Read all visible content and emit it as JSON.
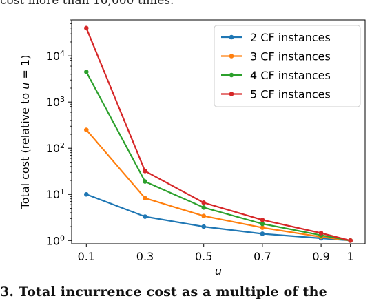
{
  "page": {
    "caption_top": "cost more than 10,000 times.",
    "caption_bottom": "3. Total incurrence cost as a multiple of the"
  },
  "chart_data": {
    "type": "line",
    "xlabel": "u",
    "ylabel": "Total cost (relative to u = 1)",
    "yscale": "log",
    "xlim": [
      0.05,
      1.05
    ],
    "ylim": [
      0.85,
      60000
    ],
    "xticks": [
      {
        "value": 0.1,
        "label": "0.1"
      },
      {
        "value": 0.3,
        "label": "0.3"
      },
      {
        "value": 0.5,
        "label": "0.5"
      },
      {
        "value": 0.7,
        "label": "0.7"
      },
      {
        "value": 0.9,
        "label": "0.9"
      },
      {
        "value": 1.0,
        "label": "1"
      }
    ],
    "yticks": [
      {
        "value": 1,
        "base": "10",
        "exp": "0"
      },
      {
        "value": 10,
        "base": "10",
        "exp": "1"
      },
      {
        "value": 100,
        "base": "10",
        "exp": "2"
      },
      {
        "value": 1000,
        "base": "10",
        "exp": "3"
      },
      {
        "value": 10000,
        "base": "10",
        "exp": "4"
      }
    ],
    "x": [
      0.1,
      0.3,
      0.5,
      0.7,
      0.9,
      1.0
    ],
    "legend_position": "top-right",
    "grid": false,
    "series": [
      {
        "name": "2 CF instances",
        "color": "#1f77b4",
        "values": [
          10,
          3.3,
          2,
          1.4,
          1.12,
          1
        ]
      },
      {
        "name": "3 CF instances",
        "color": "#ff7f0e",
        "values": [
          250,
          8.3,
          3.4,
          1.9,
          1.2,
          1
        ]
      },
      {
        "name": "4 CF instances",
        "color": "#2ca02c",
        "values": [
          4500,
          19,
          5.2,
          2.3,
          1.3,
          1
        ]
      },
      {
        "name": "5 CF instances",
        "color": "#d62728",
        "values": [
          40000,
          32,
          6.6,
          2.8,
          1.45,
          1
        ]
      }
    ]
  }
}
